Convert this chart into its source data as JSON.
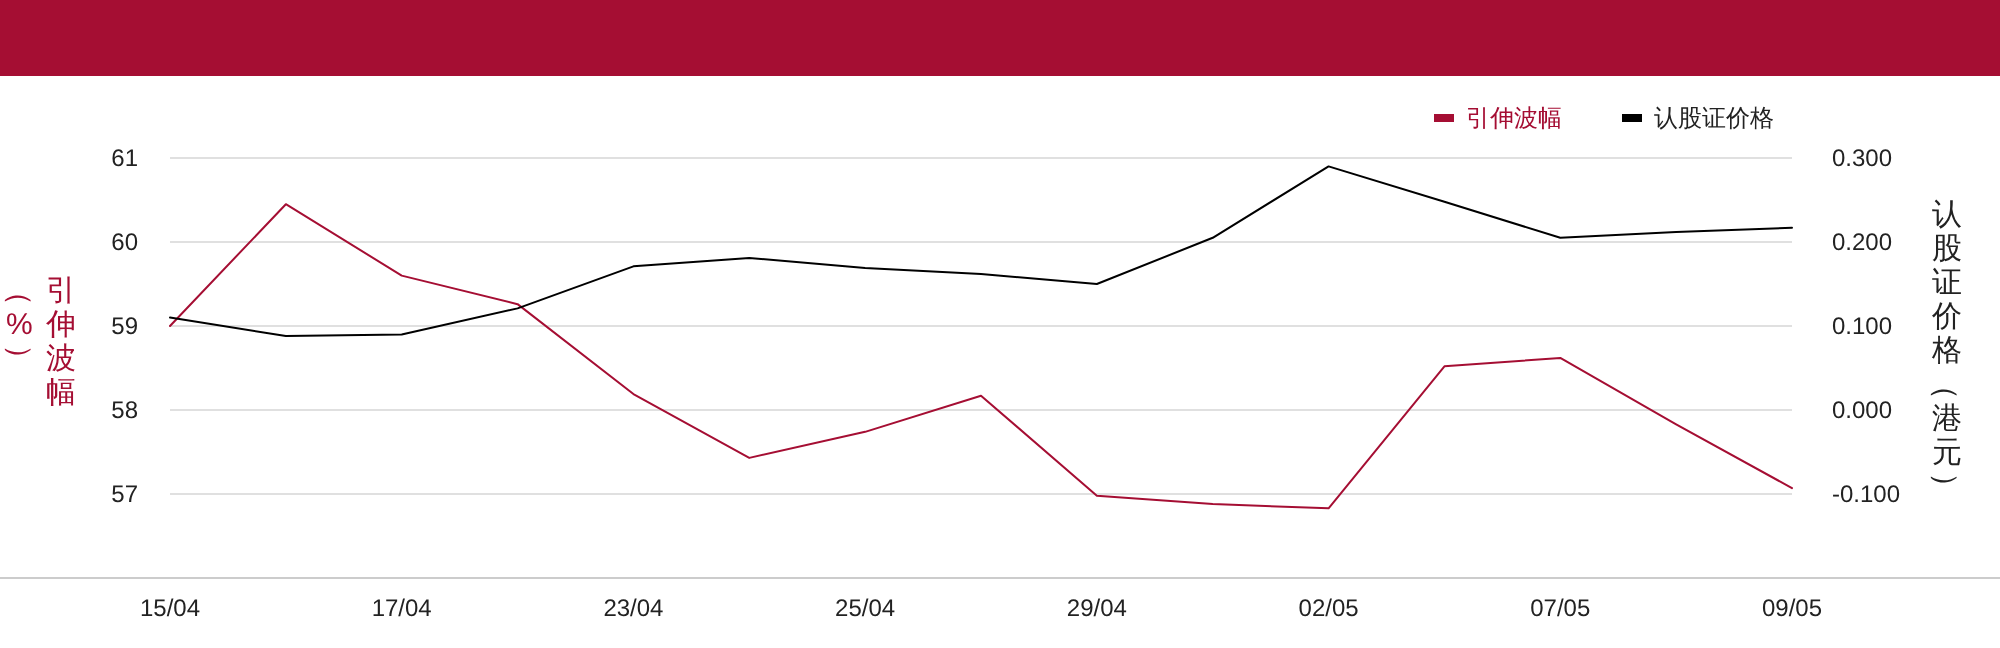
{
  "chart_data": {
    "type": "line",
    "categories": [
      "15/04",
      null,
      "17/04",
      null,
      "23/04",
      null,
      "25/04",
      null,
      "29/04",
      null,
      "02/05",
      null,
      "07/05",
      null,
      "09/05"
    ],
    "series": [
      {
        "name": "引伸波幅",
        "color": "#a50e33",
        "values": [
          59.0,
          60.45,
          59.6,
          59.26,
          58.19,
          57.43,
          57.74,
          58.17,
          56.98,
          56.88,
          56.83,
          58.52,
          58.62,
          57.83,
          57.07
        ]
      },
      {
        "name": "认股证价格",
        "color": "#000000",
        "axis": "y2",
        "values": [
          0.11,
          0.088,
          0.09,
          0.121,
          0.171,
          0.181,
          0.169,
          0.162,
          0.15,
          0.205,
          0.29,
          0.248,
          0.205,
          0.212,
          0.217
        ]
      }
    ],
    "ylabel": "引伸波幅（%）",
    "y2label": "认股证价格（港元）",
    "ylim": [
      56,
      61
    ],
    "yticks": [
      57,
      58,
      59,
      60,
      61
    ],
    "y2lim": [
      -0.2,
      0.3
    ],
    "y2ticks": [
      {
        "value": -0.1,
        "label": "-0.100"
      },
      {
        "value": 0,
        "label": "0.000"
      },
      {
        "value": 0.1,
        "label": "0.100"
      },
      {
        "value": 0.2,
        "label": "0.200"
      },
      {
        "value": 0.3,
        "label": "0.300"
      }
    ],
    "grid": "y",
    "legend": "top right",
    "marker": "none",
    "line_style": "solid"
  }
}
